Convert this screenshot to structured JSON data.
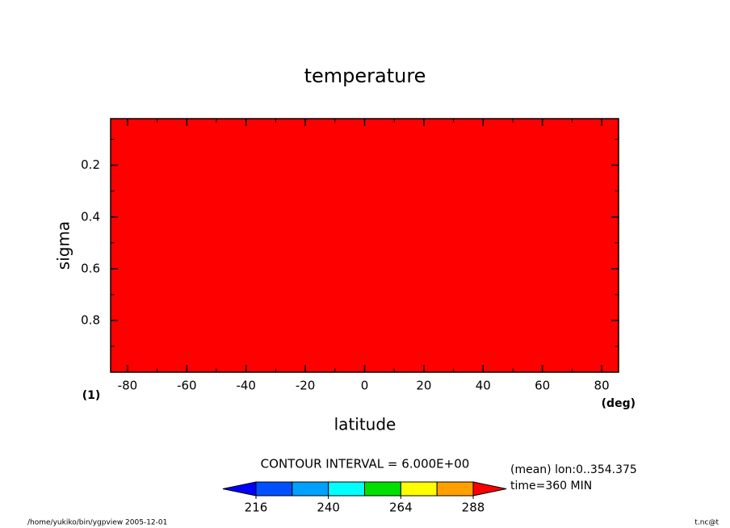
{
  "chart_data": {
    "type": "contour",
    "title": "temperature",
    "x_label": "latitude",
    "x_unit": "(deg)",
    "y_label": "sigma",
    "y_unit": "(1)",
    "xlim": [
      -85.7,
      85.7
    ],
    "xticks": [
      -80,
      -60,
      -40,
      -20,
      0,
      20,
      40,
      60,
      80
    ],
    "xminorticks": [
      -70,
      -50,
      -30,
      -10,
      10,
      30,
      50,
      70
    ],
    "ylim": [
      1,
      0.02
    ],
    "yticks": [
      0.2,
      0.4,
      0.6,
      0.8
    ],
    "yminorticks": [
      0.1,
      0.3,
      0.5,
      0.7,
      0.9
    ],
    "field_color": "#ff0000",
    "contour_note": "CONTOUR INTERVAL = 6.000E+00",
    "annotations": [
      "(mean) lon:0..354.375",
      "time=360 MIN"
    ],
    "colorbar": {
      "levels": [
        216,
        228,
        240,
        252,
        264,
        276,
        288
      ],
      "colors": [
        "#0000ff",
        "#0050ff",
        "#00a0ff",
        "#00ffff",
        "#00e000",
        "#ffff00",
        "#ffa000",
        "#ff0000"
      ],
      "ticks": [
        216,
        240,
        264,
        288
      ]
    },
    "footer_left": "/home/yukiko/bin/ygpview  2005-12-01",
    "footer_right": "t.nc@t"
  }
}
